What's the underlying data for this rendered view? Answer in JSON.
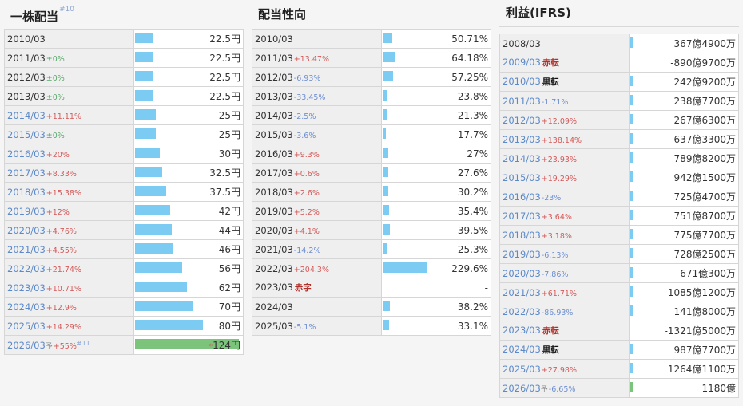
{
  "panels": [
    {
      "title": "一株配当",
      "title_sup": "#10",
      "rows": [
        {
          "year": "2010/03",
          "change": "",
          "cls": "",
          "val": "22.5円",
          "frac": 0.18
        },
        {
          "year": "2011/03",
          "change": "±0%",
          "cls": "flat",
          "val": "22.5円",
          "frac": 0.18
        },
        {
          "year": "2012/03",
          "change": "±0%",
          "cls": "flat",
          "val": "22.5円",
          "frac": 0.18
        },
        {
          "year": "2013/03",
          "change": "±0%",
          "cls": "flat",
          "val": "22.5円",
          "frac": 0.18
        },
        {
          "year": "2014/03",
          "change": "+11.11%",
          "cls": "up",
          "val": "25円",
          "frac": 0.2
        },
        {
          "year": "2015/03",
          "change": "±0%",
          "cls": "flat",
          "val": "25円",
          "frac": 0.2
        },
        {
          "year": "2016/03",
          "change": "+20%",
          "cls": "up",
          "val": "30円",
          "frac": 0.24
        },
        {
          "year": "2017/03",
          "change": "+8.33%",
          "cls": "up",
          "val": "32.5円",
          "frac": 0.26
        },
        {
          "year": "2018/03",
          "change": "+15.38%",
          "cls": "up",
          "val": "37.5円",
          "frac": 0.3
        },
        {
          "year": "2019/03",
          "change": "+12%",
          "cls": "up",
          "val": "42円",
          "frac": 0.34
        },
        {
          "year": "2020/03",
          "change": "+4.76%",
          "cls": "up",
          "val": "44円",
          "frac": 0.35
        },
        {
          "year": "2021/03",
          "change": "+4.55%",
          "cls": "up",
          "val": "46円",
          "frac": 0.37
        },
        {
          "year": "2022/03",
          "change": "+21.74%",
          "cls": "up",
          "val": "56円",
          "frac": 0.45
        },
        {
          "year": "2023/03",
          "change": "+10.71%",
          "cls": "up",
          "val": "62円",
          "frac": 0.5
        },
        {
          "year": "2024/03",
          "change": "+12.9%",
          "cls": "up",
          "val": "70円",
          "frac": 0.56
        },
        {
          "year": "2025/03",
          "change": "+14.29%",
          "cls": "up",
          "val": "80円",
          "frac": 0.65
        },
        {
          "year": "2026/03",
          "forecast": "予",
          "change": "+55%",
          "cls": "up",
          "sup": "#11",
          "star": "*",
          "val": "124円",
          "frac": 1.0,
          "green": true
        }
      ]
    },
    {
      "title": "配当性向",
      "rows": [
        {
          "year": "2010/03",
          "change": "",
          "cls": "",
          "val": "50.71%",
          "frac": 0.09
        },
        {
          "year": "2011/03",
          "change": "+13.47%",
          "cls": "up",
          "val": "64.18%",
          "frac": 0.12
        },
        {
          "year": "2012/03",
          "change": "-6.93%",
          "cls": "down",
          "val": "57.25%",
          "frac": 0.1
        },
        {
          "year": "2013/03",
          "change": "-33.45%",
          "cls": "down",
          "val": "23.8%",
          "frac": 0.04
        },
        {
          "year": "2014/03",
          "change": "-2.5%",
          "cls": "down",
          "val": "21.3%",
          "frac": 0.04
        },
        {
          "year": "2015/03",
          "change": "-3.6%",
          "cls": "down",
          "val": "17.7%",
          "frac": 0.03
        },
        {
          "year": "2016/03",
          "change": "+9.3%",
          "cls": "up",
          "val": "27%",
          "frac": 0.05
        },
        {
          "year": "2017/03",
          "change": "+0.6%",
          "cls": "up",
          "val": "27.6%",
          "frac": 0.05
        },
        {
          "year": "2018/03",
          "change": "+2.6%",
          "cls": "up",
          "val": "30.2%",
          "frac": 0.05
        },
        {
          "year": "2019/03",
          "change": "+5.2%",
          "cls": "up",
          "val": "35.4%",
          "frac": 0.06
        },
        {
          "year": "2020/03",
          "change": "+4.1%",
          "cls": "up",
          "val": "39.5%",
          "frac": 0.07
        },
        {
          "year": "2021/03",
          "change": "-14.2%",
          "cls": "down",
          "val": "25.3%",
          "frac": 0.04
        },
        {
          "year": "2022/03",
          "change": "+204.3%",
          "cls": "up",
          "val": "229.6%",
          "frac": 0.42
        },
        {
          "year": "2023/03",
          "tag": "赤字",
          "tagcls": "red",
          "change": "",
          "cls": "",
          "val": "-",
          "frac": 0
        },
        {
          "year": "2024/03",
          "change": "",
          "cls": "",
          "val": "38.2%",
          "frac": 0.07
        },
        {
          "year": "2025/03",
          "change": "-5.1%",
          "cls": "down",
          "val": "33.1%",
          "frac": 0.06
        }
      ]
    },
    {
      "title": "利益(IFRS)",
      "rows": [
        {
          "year": "2008/03",
          "change": "",
          "cls": "",
          "val": "367億4900万",
          "frac": 0.01
        },
        {
          "year": "2009/03",
          "tag": "赤転",
          "tagcls": "red",
          "change": "",
          "cls": "",
          "val": "-890億9700万",
          "frac": 0
        },
        {
          "year": "2010/03",
          "tag": "黒転",
          "tagcls": "black",
          "change": "",
          "cls": "",
          "val": "242億9200万",
          "frac": 0.01
        },
        {
          "year": "2011/03",
          "change": "-1.71%",
          "cls": "down",
          "val": "238億7700万",
          "frac": 0.01
        },
        {
          "year": "2012/03",
          "change": "+12.09%",
          "cls": "up",
          "val": "267億6300万",
          "frac": 0.01
        },
        {
          "year": "2013/03",
          "change": "+138.14%",
          "cls": "up",
          "val": "637億3300万",
          "frac": 0.01
        },
        {
          "year": "2014/03",
          "change": "+23.93%",
          "cls": "up",
          "val": "789億8200万",
          "frac": 0.01
        },
        {
          "year": "2015/03",
          "change": "+19.29%",
          "cls": "up",
          "val": "942億1500万",
          "frac": 0.02
        },
        {
          "year": "2016/03",
          "change": "-23%",
          "cls": "down",
          "val": "725億4700万",
          "frac": 0.01
        },
        {
          "year": "2017/03",
          "change": "+3.64%",
          "cls": "up",
          "val": "751億8700万",
          "frac": 0.01
        },
        {
          "year": "2018/03",
          "change": "+3.18%",
          "cls": "up",
          "val": "775億7700万",
          "frac": 0.01
        },
        {
          "year": "2019/03",
          "change": "-6.13%",
          "cls": "down",
          "val": "728億2500万",
          "frac": 0.01
        },
        {
          "year": "2020/03",
          "change": "-7.86%",
          "cls": "down",
          "val": "671億300万",
          "frac": 0.01
        },
        {
          "year": "2021/03",
          "change": "+61.71%",
          "cls": "up",
          "val": "1085億1200万",
          "frac": 0.02
        },
        {
          "year": "2022/03",
          "change": "-86.93%",
          "cls": "down",
          "val": "141億8000万",
          "frac": 0.01
        },
        {
          "year": "2023/03",
          "tag": "赤転",
          "tagcls": "red",
          "change": "",
          "cls": "",
          "val": "-1321億5000万",
          "frac": 0
        },
        {
          "year": "2024/03",
          "tag": "黒転",
          "tagcls": "black",
          "change": "",
          "cls": "",
          "val": "987億7700万",
          "frac": 0.01
        },
        {
          "year": "2025/03",
          "change": "+27.98%",
          "cls": "up",
          "val": "1264億1100万",
          "frac": 0.02
        },
        {
          "year": "2026/03",
          "forecast": "予",
          "change": "-6.65%",
          "cls": "down",
          "val": "1180億",
          "frac": 0.02,
          "green": true
        }
      ]
    }
  ]
}
